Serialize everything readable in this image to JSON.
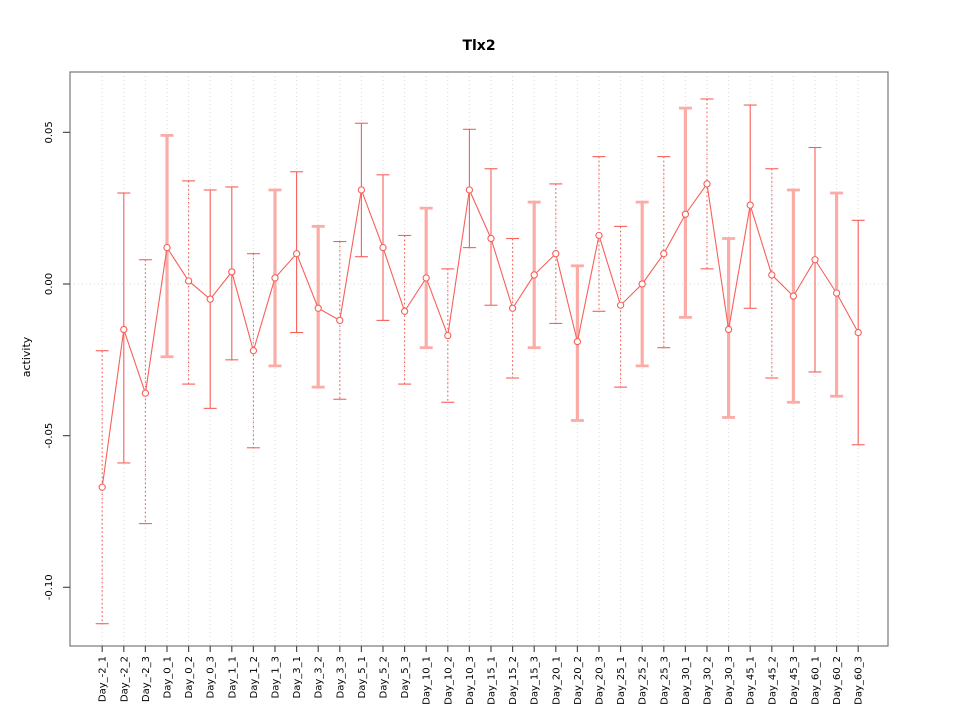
{
  "title": "Tlx2",
  "axes": {
    "y_label": "activity",
    "y_tick_labels": [
      "0.05",
      "0.00",
      "-0.05",
      "-0.10"
    ],
    "y_tick_values": [
      0.05,
      0,
      -0.05,
      -0.1
    ]
  },
  "colors": {
    "series_red": "#f8605a",
    "pale_red": "#fbaca6",
    "grid": "#d9d9d9",
    "zero_line": "#dcdcdc",
    "frame": "#777777",
    "tick": "#4d4d4d",
    "text": "#000000",
    "background": "#ffffff"
  },
  "chart_data": {
    "type": "line",
    "subtype": "means-with-error-bars",
    "title": "Tlx2",
    "xlabel": "",
    "ylabel": "activity",
    "legend_position": "none",
    "grid": "vertical-dotted-per-category",
    "zero_reference_line": true,
    "ylim": [
      -0.119,
      0.07
    ],
    "yticks": [
      0.05,
      0,
      -0.05,
      -0.1
    ],
    "categories": [
      "Day_-2_1",
      "Day_-2_2",
      "Day_-2_3",
      "Day_0_1",
      "Day_0_2",
      "Day_0_3",
      "Day_1_1",
      "Day_1_2",
      "Day_1_3",
      "Day_3_1",
      "Day_3_2",
      "Day_3_3",
      "Day_5_1",
      "Day_5_2",
      "Day_5_3",
      "Day_10_1",
      "Day_10_2",
      "Day_10_3",
      "Day_15_1",
      "Day_15_2",
      "Day_15_3",
      "Day_20_1",
      "Day_20_2",
      "Day_20_3",
      "Day_25_1",
      "Day_25_2",
      "Day_25_3",
      "Day_30_1",
      "Day_30_2",
      "Day_30_3",
      "Day_45_1",
      "Day_45_2",
      "Day_45_3",
      "Day_60_1",
      "Day_60_2",
      "Day_60_3"
    ],
    "series": [
      {
        "name": "activity",
        "values": [
          -0.067,
          -0.015,
          -0.036,
          0.012,
          0.001,
          -0.005,
          0.004,
          -0.022,
          0.002,
          0.01,
          -0.008,
          -0.012,
          0.031,
          0.012,
          -0.009,
          0.002,
          -0.017,
          0.031,
          0.015,
          -0.008,
          0.003,
          0.01,
          -0.019,
          0.016,
          -0.007,
          0.0,
          0.01,
          0.023,
          0.033,
          -0.015,
          0.026,
          0.003,
          -0.004,
          0.008,
          -0.003,
          -0.016
        ],
        "error_upper": [
          -0.022,
          0.03,
          0.008,
          0.049,
          0.034,
          0.031,
          0.032,
          0.01,
          0.031,
          0.037,
          0.019,
          0.014,
          0.053,
          0.036,
          0.016,
          0.025,
          0.005,
          0.051,
          0.038,
          0.015,
          0.027,
          0.033,
          0.006,
          0.042,
          0.019,
          0.027,
          0.042,
          0.058,
          0.061,
          0.015,
          0.059,
          0.038,
          0.031,
          0.045,
          0.03,
          0.021
        ],
        "error_lower": [
          -0.112,
          -0.059,
          -0.079,
          -0.024,
          -0.033,
          -0.041,
          -0.025,
          -0.054,
          -0.027,
          -0.016,
          -0.034,
          -0.038,
          0.009,
          -0.012,
          -0.033,
          -0.021,
          -0.039,
          0.012,
          -0.007,
          -0.031,
          -0.021,
          -0.013,
          -0.045,
          -0.009,
          -0.034,
          -0.027,
          -0.021,
          -0.011,
          0.005,
          -0.044,
          -0.008,
          -0.031,
          -0.039,
          -0.029,
          -0.037,
          -0.053
        ],
        "bar_styles": [
          "dotted",
          "solid",
          "dotted",
          "thick",
          "dotted",
          "solid",
          "solid",
          "dotted",
          "thick",
          "solid",
          "thick",
          "dotted",
          "solid",
          "solid",
          "dotted",
          "thick",
          "dotted",
          "solid",
          "solid",
          "dotted",
          "thick",
          "dotted",
          "thick",
          "dotted",
          "dotted",
          "thick",
          "dotted",
          "thick",
          "dotted",
          "thick",
          "solid",
          "dotted",
          "thick",
          "solid",
          "thick",
          "solid"
        ]
      }
    ]
  }
}
